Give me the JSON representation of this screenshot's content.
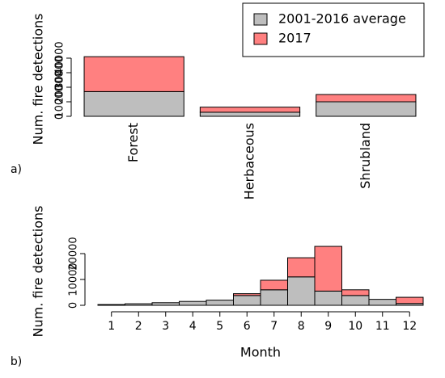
{
  "chart_data": [
    {
      "type": "bar",
      "stacked": true,
      "panel_label": "a)",
      "y_label": "Num. fire detections",
      "categories": [
        "Forest",
        "Herbaceous",
        "Shrubland"
      ],
      "series": [
        {
          "name": "2001-2016 average",
          "color": "#bebebe",
          "values": [
            17000,
            2800,
            10000
          ]
        },
        {
          "name": "2017",
          "color": "#ff8080",
          "values": [
            24000,
            3500,
            5000
          ]
        }
      ],
      "ylim": [
        0,
        40000
      ],
      "yticks": [
        0,
        10000,
        20000,
        30000,
        40000
      ],
      "legend": "top-right"
    },
    {
      "type": "bar",
      "stacked": true,
      "panel_label": "b)",
      "y_label": "Num. fire detections",
      "x_label": "Month",
      "categories": [
        "1",
        "2",
        "3",
        "4",
        "5",
        "6",
        "7",
        "8",
        "9",
        "10",
        "11",
        "12"
      ],
      "series": [
        {
          "color": "#bebebe",
          "values": [
            300,
            600,
            1000,
            1500,
            2000,
            3800,
            6000,
            11000,
            5500,
            3800,
            2300,
            700
          ]
        },
        {
          "color": "#ff8080",
          "values": [
            0,
            0,
            0,
            0,
            0,
            700,
            3700,
            7400,
            17300,
            2200,
            0,
            2400
          ]
        }
      ],
      "ylim": [
        0,
        20000
      ],
      "yticks": [
        0,
        10000,
        20000
      ]
    }
  ]
}
